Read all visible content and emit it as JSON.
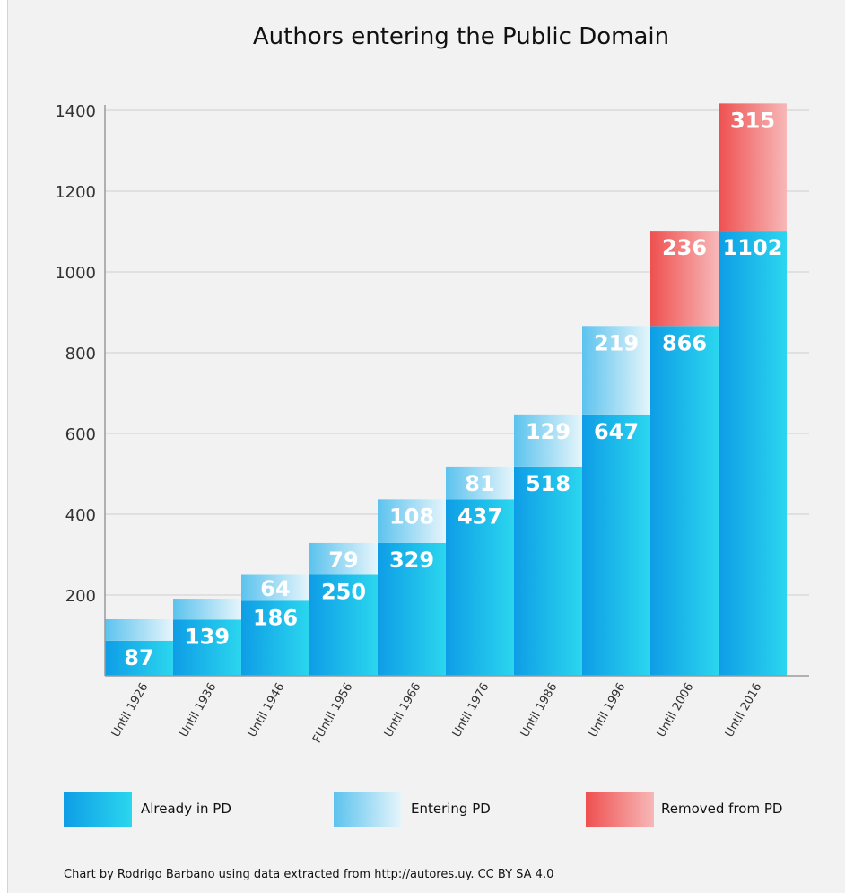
{
  "chart_data": {
    "type": "bar",
    "stacked": true,
    "title": "Authors entering the Public Domain",
    "xlabel": "",
    "ylabel": "",
    "ylim": [
      0,
      1400
    ],
    "yticks": [
      200,
      400,
      600,
      800,
      1000,
      1200,
      1400
    ],
    "grid": true,
    "legend_placement": "bottom",
    "categories": [
      "Until 1926",
      "Until 1936",
      "Until 1946",
      "FUntil 1956",
      "Until 1966",
      "Until 1976",
      "Until 1986",
      "Until 1996",
      "Until 2006",
      "Until 2016"
    ],
    "series": [
      {
        "name": "Already in PD",
        "color": "#1aa7e8",
        "values": [
          87,
          139,
          186,
          250,
          329,
          437,
          518,
          647,
          866,
          1102
        ],
        "labels": [
          "87",
          "139",
          "186",
          "250",
          "329",
          "437",
          "518",
          "647",
          "866",
          "1102"
        ]
      },
      {
        "name": "Entering PD",
        "color": "#8fd3f2",
        "values": [
          53,
          52,
          64,
          79,
          108,
          81,
          129,
          219,
          0,
          0
        ],
        "labels": [
          "",
          "",
          "64",
          "79",
          "108",
          "81",
          "129",
          "219",
          "",
          ""
        ]
      },
      {
        "name": "Removed from PD",
        "color": "#f26a6a",
        "values": [
          0,
          0,
          0,
          0,
          0,
          0,
          0,
          0,
          236,
          315
        ],
        "labels": [
          "",
          "",
          "",
          "",
          "",
          "",
          "",
          "",
          "236",
          "315"
        ]
      }
    ],
    "credit": "Chart by Rodrigo Barbano using data extracted from http://autores.uy. CC BY SA 4.0"
  }
}
